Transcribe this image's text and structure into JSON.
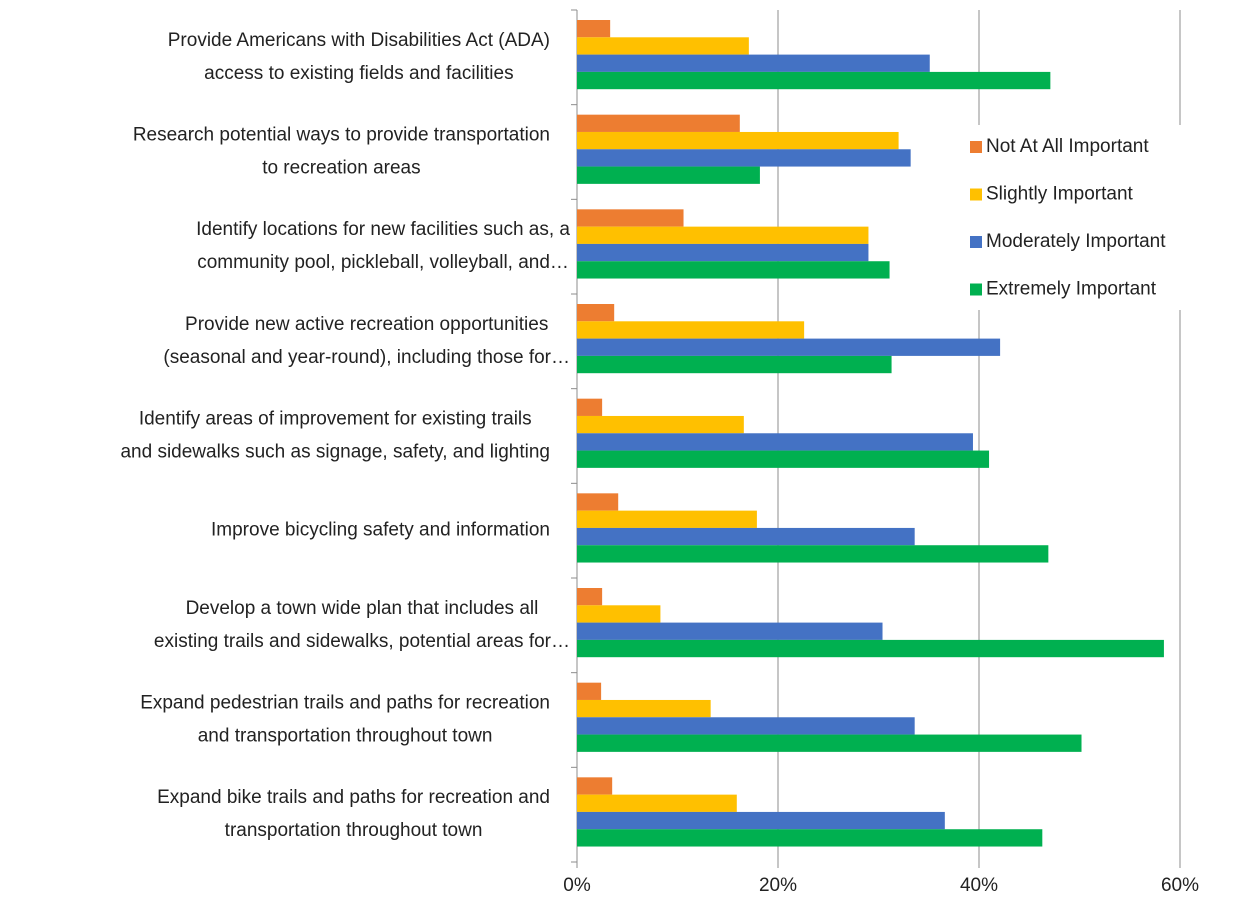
{
  "chart_data": {
    "type": "hbar",
    "categories": [
      "Provide Americans with Disabilities Act (ADA)\naccess to existing fields and facilities",
      "Research potential ways to provide transportation\nto recreation areas",
      "Identify locations for new facilities such as, a\ncommunity pool, pickleball, volleyball, and…",
      "Provide new active recreation opportunities\n(seasonal and year-round), including those for…",
      "Identify areas of improvement for existing trails\nand sidewalks such as signage, safety, and lighting",
      "Improve bicycling safety and information",
      "Develop a town wide plan that includes all\nexisting trails and sidewalks, potential areas for…",
      "Expand pedestrian trails and paths for recreation\nand transportation throughout town",
      "Expand bike trails and paths for recreation and\ntransportation throughout town"
    ],
    "series": [
      {
        "name": "Not At All Important",
        "color": "#ED7D31",
        "values": [
          3.3,
          16.2,
          10.6,
          3.7,
          2.5,
          4.1,
          2.5,
          2.4,
          3.5
        ]
      },
      {
        "name": "Slightly Important",
        "color": "#FFC000",
        "values": [
          17.1,
          32.0,
          29.0,
          22.6,
          16.6,
          17.9,
          8.3,
          13.3,
          15.9
        ]
      },
      {
        "name": "Moderately Important",
        "color": "#4472C4",
        "values": [
          35.1,
          33.2,
          29.0,
          42.1,
          39.4,
          33.6,
          30.4,
          33.6,
          36.6
        ]
      },
      {
        "name": "Extremely Important",
        "color": "#00B050",
        "values": [
          47.1,
          18.2,
          31.1,
          31.3,
          41.0,
          46.9,
          58.4,
          50.2,
          46.3
        ]
      }
    ],
    "xlim": [
      0,
      60
    ],
    "xticks": [
      {
        "value": 0,
        "label": "0%"
      },
      {
        "value": 20,
        "label": "20%"
      },
      {
        "value": 40,
        "label": "40%"
      },
      {
        "value": 60,
        "label": "60%"
      }
    ],
    "grid": true,
    "legend": "right"
  }
}
